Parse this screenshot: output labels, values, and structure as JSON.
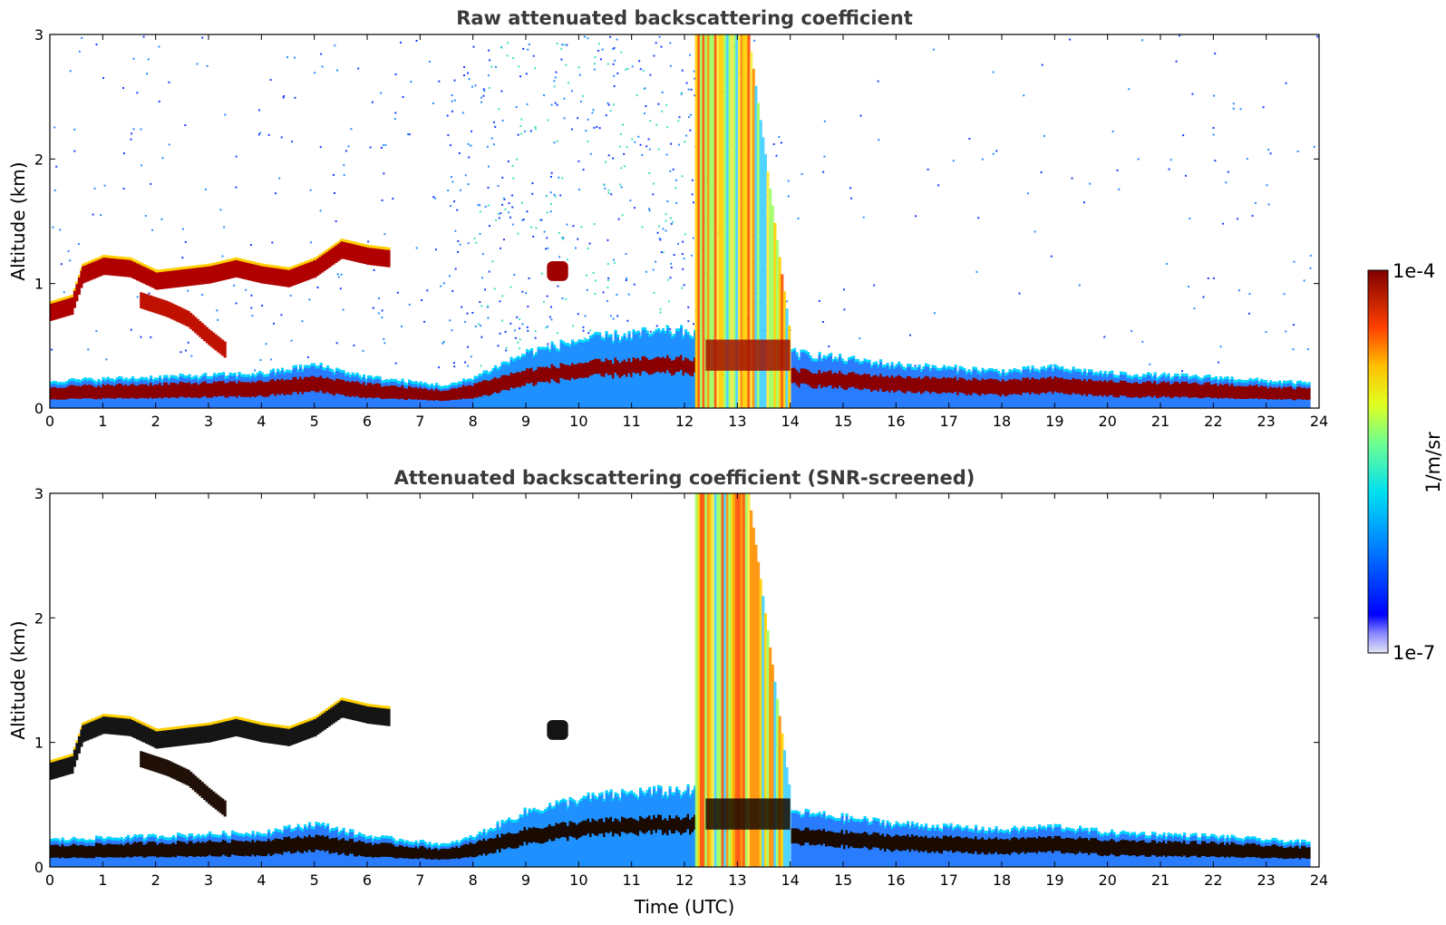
{
  "chart_data": [
    {
      "type": "heatmap",
      "title": "Raw attenuated backscattering coefficient",
      "xlabel": "",
      "ylabel": "Altitude (km)",
      "xlim": [
        0,
        24
      ],
      "ylim": [
        0,
        3
      ],
      "x_ticks": [
        "0",
        "1",
        "2",
        "3",
        "4",
        "5",
        "6",
        "7",
        "8",
        "9",
        "10",
        "11",
        "12",
        "13",
        "14",
        "15",
        "16",
        "17",
        "18",
        "19",
        "20",
        "21",
        "22",
        "23",
        "24"
      ],
      "y_ticks": [
        "0",
        "1",
        "2",
        "3"
      ],
      "background_noise": "high",
      "features": [
        {
          "name": "boundary layer top",
          "time": [
            0,
            2,
            4,
            5,
            5.5,
            6,
            7.5,
            8,
            9,
            10,
            11,
            12,
            14,
            16,
            18,
            19,
            20,
            22,
            23,
            23.8
          ],
          "alt": [
            0.22,
            0.25,
            0.28,
            0.35,
            0.3,
            0.25,
            0.18,
            0.25,
            0.45,
            0.55,
            0.6,
            0.62,
            0.45,
            0.35,
            0.3,
            0.33,
            0.28,
            0.25,
            0.22,
            0.2
          ]
        },
        {
          "name": "cloud layer",
          "time": [
            0,
            0.4,
            0.6,
            1,
            1.5,
            2,
            3,
            3.5,
            4,
            4.5,
            5,
            5.5,
            6,
            6.4
          ],
          "alt": [
            0.75,
            0.8,
            1.05,
            1.12,
            1.1,
            1.0,
            1.05,
            1.1,
            1.05,
            1.02,
            1.1,
            1.25,
            1.2,
            1.18
          ]
        },
        {
          "name": "lower cloud",
          "time": [
            1.7,
            2.2,
            2.6,
            3.0,
            3.3
          ],
          "alt": [
            0.85,
            0.78,
            0.7,
            0.55,
            0.45
          ]
        },
        {
          "name": "small cloud",
          "time": [
            9.4,
            9.8
          ],
          "alt": [
            1.12,
            1.08
          ]
        },
        {
          "name": "precipitation",
          "time": [
            12.2,
            14.0
          ],
          "alt": [
            0,
            3
          ]
        }
      ],
      "colorbar": {
        "min": "1e-7",
        "max": "1e-4",
        "label": "1/m/sr",
        "colormap": "jet"
      }
    },
    {
      "type": "heatmap",
      "title": "Attenuated backscattering coefficient (SNR-screened)",
      "xlabel": "Time (UTC)",
      "ylabel": "Altitude (km)",
      "xlim": [
        0,
        24
      ],
      "ylim": [
        0,
        3
      ],
      "x_ticks": [
        "0",
        "1",
        "2",
        "3",
        "4",
        "5",
        "6",
        "7",
        "8",
        "9",
        "10",
        "11",
        "12",
        "13",
        "14",
        "15",
        "16",
        "17",
        "18",
        "19",
        "20",
        "21",
        "22",
        "23",
        "24"
      ],
      "y_ticks": [
        "0",
        "1",
        "2",
        "3"
      ],
      "background_noise": "none",
      "features": [
        {
          "name": "boundary layer top",
          "time": [
            0,
            2,
            4,
            5,
            5.5,
            6,
            7.5,
            8,
            9,
            10,
            11,
            12,
            14,
            16,
            18,
            19,
            20,
            22,
            23,
            23.8
          ],
          "alt": [
            0.22,
            0.25,
            0.28,
            0.35,
            0.3,
            0.25,
            0.18,
            0.25,
            0.45,
            0.55,
            0.6,
            0.62,
            0.45,
            0.35,
            0.3,
            0.33,
            0.28,
            0.25,
            0.22,
            0.2
          ]
        },
        {
          "name": "cloud layer",
          "time": [
            0,
            0.4,
            0.6,
            1,
            1.5,
            2,
            3,
            3.5,
            4,
            4.5,
            5,
            5.5,
            6,
            6.4
          ],
          "alt": [
            0.75,
            0.8,
            1.05,
            1.12,
            1.1,
            1.0,
            1.05,
            1.1,
            1.05,
            1.02,
            1.1,
            1.25,
            1.2,
            1.18
          ]
        },
        {
          "name": "lower cloud",
          "time": [
            1.7,
            2.2,
            2.6,
            3.0,
            3.3
          ],
          "alt": [
            0.85,
            0.78,
            0.7,
            0.55,
            0.45
          ]
        },
        {
          "name": "small cloud",
          "time": [
            9.4,
            9.8
          ],
          "alt": [
            1.12,
            1.08
          ]
        },
        {
          "name": "precipitation",
          "time": [
            12.2,
            14.0
          ],
          "alt": [
            0,
            3
          ]
        }
      ],
      "colorbar": {
        "min": "1e-7",
        "max": "1e-4",
        "label": "1/m/sr",
        "colormap": "jet"
      }
    }
  ],
  "colorbar": {
    "max_label": "1e-4",
    "min_label": "1e-7",
    "unit_label": "1/m/sr"
  }
}
